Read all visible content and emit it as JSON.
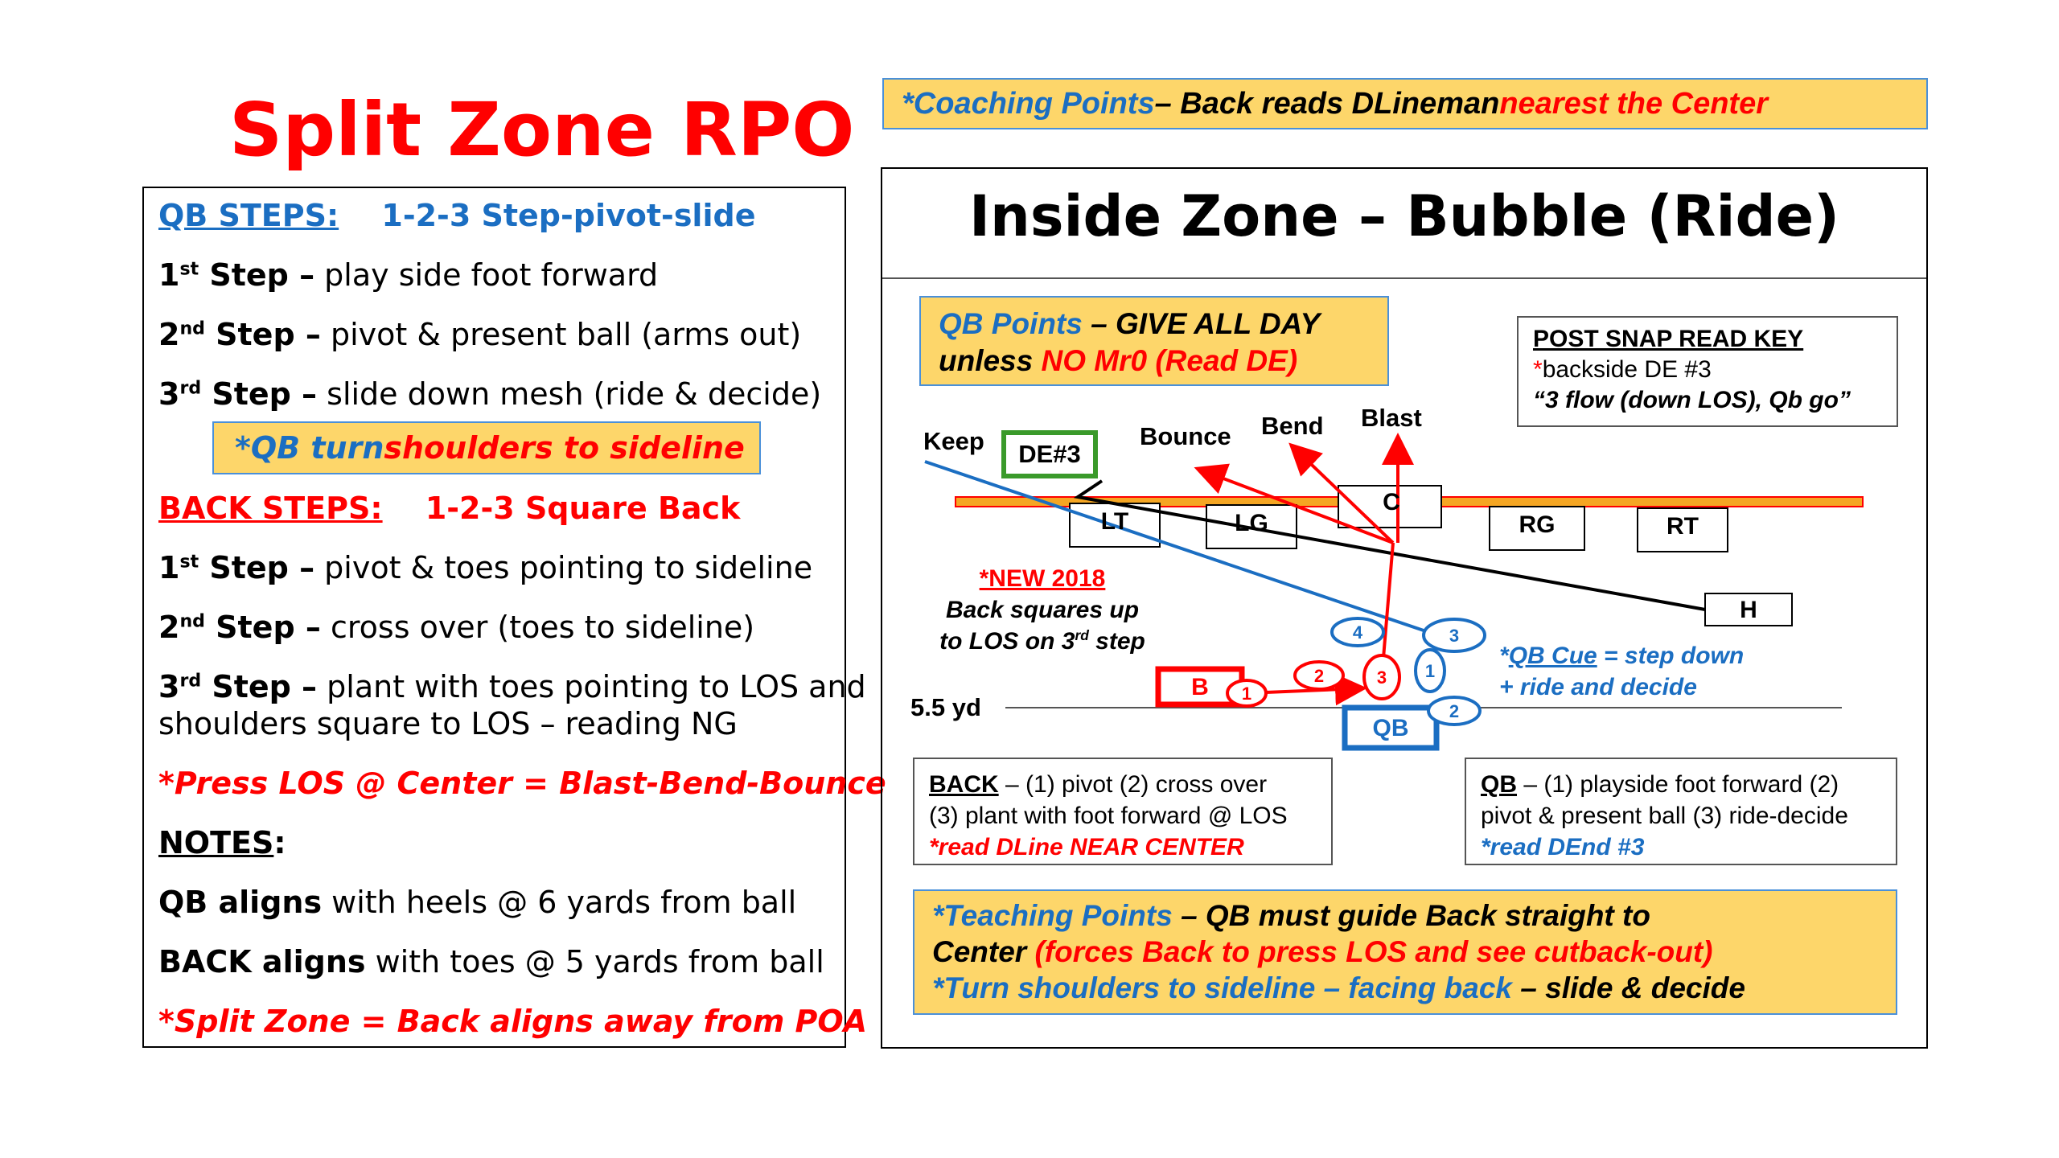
{
  "title": "Split Zone RPO",
  "left": {
    "qb_steps_label": "QB STEPS:",
    "qb_steps_value": "1-2-3 Step-pivot-slide",
    "qb_step1_n": "1",
    "qb_step1_sup": "st",
    "qb_step1_label": " Step –",
    "qb_step1_text": " play side foot forward",
    "qb_step2_n": "2",
    "qb_step2_sup": "nd",
    "qb_step2_label": " Step –",
    "qb_step2_text": " pivot & present ball (arms out)",
    "qb_step3_n": "3",
    "qb_step3_sup": "rd",
    "qb_step3_label": " Step –",
    "qb_step3_text": " slide down mesh (ride & decide)",
    "qb_turn_a": "*QB turn ",
    "qb_turn_b": "shoulders to sideline",
    "back_steps_label": "BACK STEPS:",
    "back_steps_value": "1-2-3 Square Back",
    "back_step1_n": "1",
    "back_step1_sup": "st",
    "back_step1_label": " Step –",
    "back_step1_text": " pivot & toes pointing to sideline",
    "back_step2_n": "2",
    "back_step2_sup": "nd",
    "back_step2_label": " Step –",
    "back_step2_text": " cross over (toes to sideline)",
    "back_step3_n": "3",
    "back_step3_sup": "rd",
    "back_step3_label": " Step –",
    "back_step3_text": " plant with toes pointing to LOS and",
    "back_step3_text2": "shoulders square to LOS – reading NG",
    "press_los": "*Press LOS @ Center = Blast-Bend-Bounce",
    "notes_label": "NOTES",
    "notes_colon": ":",
    "qb_aligns_label": "QB aligns",
    "qb_aligns_text": " with heels @ 6 yards from ball",
    "back_aligns_label": "BACK aligns",
    "back_aligns_text": " with toes @ 5 yards from ball",
    "split_zone_note": "*Split Zone = Back aligns away from POA"
  },
  "coaching": {
    "a": "*Coaching Points",
    "b": " – Back reads DLineman ",
    "c": "nearest the Center"
  },
  "right": {
    "title": "Inside Zone – Bubble (Ride)",
    "qb_points_a": "QB Points",
    "qb_points_b": " – GIVE ALL DAY",
    "qb_points_c": "unless ",
    "qb_points_d": "NO Mr0 (Read DE)",
    "read_key_title": "POST SNAP READ KEY",
    "read_key_star": "*",
    "read_key_line1": "backside DE #3",
    "read_key_line2": "“3 flow (down LOS), Qb go”",
    "labels": {
      "keep": "Keep",
      "de3": "DE#3",
      "bounce": "Bounce",
      "bend": "Bend",
      "blast": "Blast",
      "lt": "LT",
      "lg": "LG",
      "c": "C",
      "rg": "RG",
      "rt": "RT",
      "h": "H",
      "b": "B",
      "qb": "QB",
      "yd": "5.5 yd"
    },
    "steps": {
      "back1": "1",
      "back2": "2",
      "back3": "3",
      "qb1": "1",
      "qb2": "2",
      "qb3": "3",
      "qb4": "4"
    },
    "new2018": "*NEW 2018",
    "new2018_l2": "Back squares up",
    "new2018_l3a": "to LOS on 3",
    "new2018_l3sup": "rd",
    "new2018_l3b": " step",
    "qb_cue_a": "*",
    "qb_cue_b": "QB Cue",
    "qb_cue_c": " = step down",
    "qb_cue_l2": "+ ride and decide",
    "back_box_a": "BACK",
    "back_box_b": " – (1) pivot (2) cross over",
    "back_box_l2": "(3) plant with foot forward @ LOS",
    "back_box_l3": "*read DLine NEAR CENTER",
    "qb_box_a": "QB",
    "qb_box_b": " – (1) playside foot forward (2)",
    "qb_box_l2": "pivot & present ball (3) ride-decide",
    "qb_box_l3": "*read DEnd #3",
    "teach_a": "*Teaching Points",
    "teach_b": " – QB must guide Back straight to",
    "teach_c": "Center ",
    "teach_d": "(forces Back to press LOS and see cutback-out)",
    "teach_e": "*Turn shoulders to sideline – facing back",
    "teach_f": " – slide & decide"
  },
  "colors": {
    "red": "#ff0000",
    "blue": "#1b6ec2",
    "yellow": "#fdd66a",
    "green": "#3a9a2a",
    "orange": "#f5a623"
  }
}
